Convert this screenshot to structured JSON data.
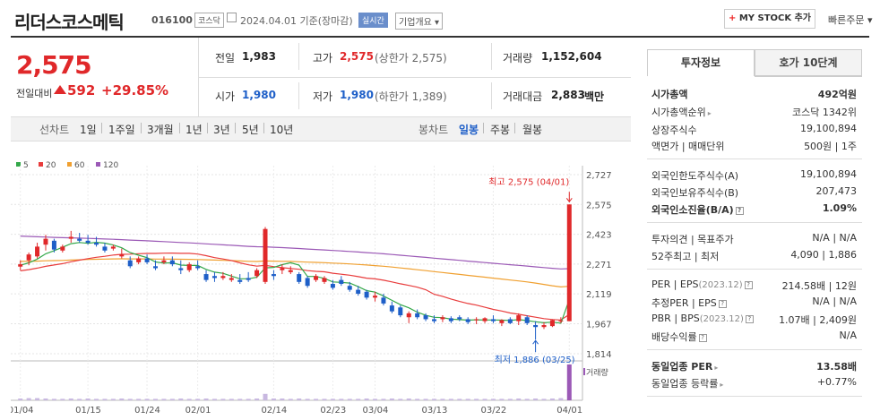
{
  "header": {
    "title": "리더스코스메틱",
    "code": "016100",
    "market": "코스닥",
    "date": "2024.04.01 기준(장마감)",
    "realtime": "실시간",
    "corp_info": "기업개요 ▾",
    "mystock": "MY STOCK 추가",
    "mystock_plus": "+",
    "quick_order": "빠른주문 ▾"
  },
  "quote": {
    "price": "2,575",
    "compare_label": "전일대비",
    "change": "592",
    "change_pct": "+29.85%",
    "prev_label": "전일",
    "prev": "1,983",
    "high_label": "고가",
    "high": "2,575",
    "upper_limit": "(상한가 2,575)",
    "volume_label": "거래량",
    "volume": "1,152,604",
    "open_label": "시가",
    "open": "1,980",
    "low_label": "저가",
    "low": "1,980",
    "lower_limit": "(하한가 1,389)",
    "amount_label": "거래대금",
    "amount": "2,883",
    "amount_unit": "백만"
  },
  "periods": {
    "line_label": "선차트",
    "line_items": [
      "1일",
      "1주일",
      "3개월",
      "1년",
      "3년",
      "5년",
      "10년"
    ],
    "candle_label": "봉차트",
    "candle_items": [
      "일봉",
      "주봉",
      "월봉"
    ]
  },
  "colors": {
    "up": "#e0282a",
    "down": "#1e5fc8",
    "ma5": "#34a84a",
    "ma20": "#e83c3c",
    "ma60": "#f0a030",
    "ma120": "#9b59b6"
  },
  "chart_data": {
    "type": "candlestick",
    "legend": [
      "5",
      "20",
      "60",
      "120"
    ],
    "y_ticks": [
      "2,727",
      "2,575",
      "2,423",
      "2,271",
      "2,119",
      "1,967",
      "1,814"
    ],
    "ylim": [
      1814,
      2727
    ],
    "x_ticks": [
      "01/04",
      "01/15",
      "01/24",
      "02/01",
      "02/14",
      "02/23",
      "03/04",
      "03/13",
      "03/22",
      "04/01"
    ],
    "high_annotation": "최고 2,575 (04/01)",
    "low_annotation": "최저 1,886 (03/25)",
    "volume_label": "거래량",
    "candles": [
      [
        2258,
        2290,
        2240,
        2270
      ],
      [
        2290,
        2330,
        2265,
        2320
      ],
      [
        2310,
        2380,
        2300,
        2360
      ],
      [
        2370,
        2420,
        2340,
        2400
      ],
      [
        2390,
        2400,
        2330,
        2345
      ],
      [
        2340,
        2370,
        2330,
        2360
      ],
      [
        2400,
        2440,
        2380,
        2410
      ],
      [
        2400,
        2430,
        2380,
        2390
      ],
      [
        2390,
        2420,
        2370,
        2380
      ],
      [
        2380,
        2410,
        2360,
        2370
      ],
      [
        2360,
        2380,
        2330,
        2340
      ],
      [
        2350,
        2370,
        2340,
        2360
      ],
      [
        2310,
        2350,
        2300,
        2320
      ],
      [
        2290,
        2310,
        2250,
        2260
      ],
      [
        2280,
        2310,
        2270,
        2300
      ],
      [
        2300,
        2320,
        2270,
        2280
      ],
      [
        2260,
        2290,
        2240,
        2250
      ],
      [
        2280,
        2310,
        2270,
        2290
      ],
      [
        2290,
        2310,
        2260,
        2270
      ],
      [
        2250,
        2290,
        2220,
        2240
      ],
      [
        2240,
        2280,
        2230,
        2270
      ],
      [
        2260,
        2290,
        2240,
        2250
      ],
      [
        2220,
        2240,
        2180,
        2190
      ],
      [
        2210,
        2230,
        2180,
        2200
      ],
      [
        2200,
        2230,
        2190,
        2210
      ],
      [
        2190,
        2220,
        2180,
        2200
      ],
      [
        2190,
        2220,
        2170,
        2180
      ],
      [
        2200,
        2230,
        2180,
        2190
      ],
      [
        2210,
        2250,
        2200,
        2240
      ],
      [
        2180,
        2460,
        2170,
        2450
      ],
      [
        2220,
        2240,
        2190,
        2210
      ],
      [
        2240,
        2270,
        2220,
        2250
      ],
      [
        2230,
        2260,
        2220,
        2240
      ],
      [
        2220,
        2230,
        2170,
        2180
      ],
      [
        2200,
        2210,
        2150,
        2160
      ],
      [
        2190,
        2220,
        2180,
        2210
      ],
      [
        2180,
        2210,
        2170,
        2200
      ],
      [
        2170,
        2190,
        2140,
        2150
      ],
      [
        2190,
        2210,
        2160,
        2170
      ],
      [
        2160,
        2180,
        2130,
        2140
      ],
      [
        2140,
        2160,
        2110,
        2120
      ],
      [
        2130,
        2140,
        2090,
        2100
      ],
      [
        2100,
        2130,
        2080,
        2110
      ],
      [
        2100,
        2120,
        2060,
        2070
      ],
      [
        2060,
        2080,
        2020,
        2030
      ],
      [
        2050,
        2060,
        2000,
        2010
      ],
      [
        2000,
        2030,
        1970,
        2020
      ],
      [
        2020,
        2040,
        1990,
        2000
      ],
      [
        2010,
        2020,
        1980,
        1990
      ],
      [
        1990,
        2010,
        1970,
        1980
      ],
      [
        1990,
        2010,
        1975,
        2000
      ],
      [
        1995,
        2005,
        1970,
        1980
      ],
      [
        2000,
        2010,
        1980,
        1990
      ],
      [
        1990,
        2000,
        1965,
        1975
      ],
      [
        1985,
        2000,
        1965,
        1990
      ],
      [
        1980,
        2000,
        1970,
        1995
      ],
      [
        1990,
        2010,
        1970,
        1980
      ],
      [
        1970,
        1990,
        1955,
        1985
      ],
      [
        1990,
        2000,
        1965,
        1970
      ],
      [
        1980,
        2020,
        1960,
        2010
      ],
      [
        2000,
        2010,
        1960,
        1970
      ],
      [
        1960,
        1980,
        1886,
        1950
      ],
      [
        1950,
        1975,
        1940,
        1960
      ],
      [
        1955,
        1990,
        1950,
        1985
      ],
      [
        1983,
        2000,
        1970,
        1983
      ],
      [
        1980,
        2575,
        1980,
        2575
      ]
    ],
    "volume_relative": [
      0.05,
      0.06,
      0.06,
      0.05,
      0.04,
      0.04,
      0.05,
      0.04,
      0.05,
      0.04,
      0.04,
      0.04,
      0.05,
      0.04,
      0.04,
      0.04,
      0.04,
      0.04,
      0.04,
      0.05,
      0.04,
      0.04,
      0.05,
      0.04,
      0.04,
      0.04,
      0.04,
      0.04,
      0.05,
      0.18,
      0.05,
      0.05,
      0.04,
      0.05,
      0.04,
      0.04,
      0.04,
      0.04,
      0.04,
      0.04,
      0.04,
      0.05,
      0.04,
      0.04,
      0.05,
      0.04,
      0.05,
      0.04,
      0.04,
      0.04,
      0.04,
      0.04,
      0.04,
      0.04,
      0.04,
      0.04,
      0.04,
      0.04,
      0.04,
      0.05,
      0.04,
      0.05,
      0.04,
      0.05,
      0.06,
      1.0
    ]
  },
  "side": {
    "tab_active": "투자정보",
    "tab_other": "호가 10단계",
    "rows": {
      "mcap_label": "시가총액",
      "mcap": "492억원",
      "rank_label": "시가총액순위",
      "rank": "코스닥 1342위",
      "shares_label": "상장주식수",
      "shares": "19,100,894",
      "par_label": "액면가 | 매매단위",
      "par": "500원 | 1주",
      "foreign_limit_label": "외국인한도주식수(A)",
      "foreign_limit": "19,100,894",
      "foreign_hold_label": "외국인보유주식수(B)",
      "foreign_hold": "207,473",
      "foreign_ratio_label": "외국인소진율(B/A)",
      "foreign_ratio": "1.09%",
      "opinion_label": "투자의견 | 목표주가",
      "opinion": "N/A | N/A",
      "w52_label": "52주최고 | 최저",
      "w52": "4,090 | 1,886",
      "per_label": "PER | EPS",
      "per_sub": "(2023.12)",
      "per": "214.58배 | 12원",
      "eper_label": "추정PER | EPS",
      "eper": "N/A | N/A",
      "pbr_label": "PBR | BPS",
      "pbr_sub": "(2023.12)",
      "pbr": "1.07배 | 2,409원",
      "div_label": "배당수익률",
      "div": "N/A",
      "sector_per_label": "동일업종 PER",
      "sector_per": "13.58배",
      "sector_rate_label": "동일업종 등락률",
      "sector_rate": "+0.77%"
    }
  }
}
